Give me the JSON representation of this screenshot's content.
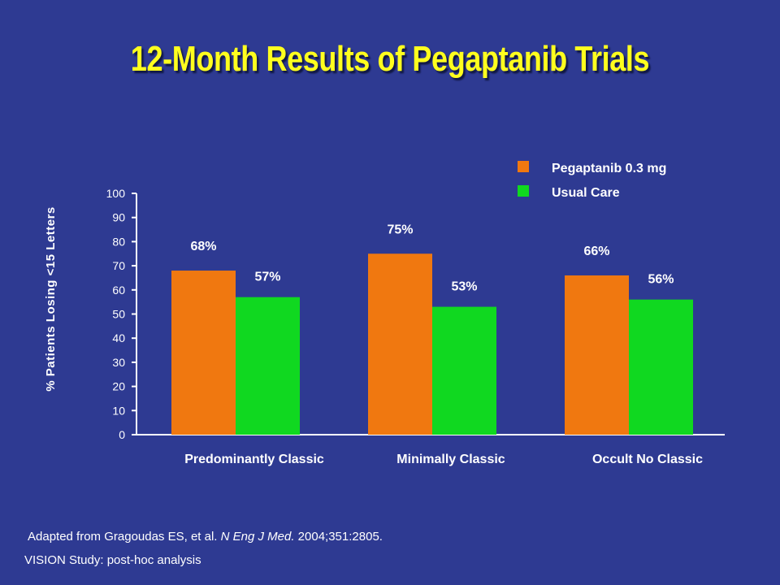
{
  "slide": {
    "title": "12-Month Results of Pegaptanib Trials",
    "citation": {
      "prefix": "Adapted from Gragoudas ES, et al. ",
      "journal": "N Eng J Med.",
      "suffix": " 2004;351:2805."
    },
    "footnote": "VISION Study: post-hoc analysis"
  },
  "chart_data": {
    "type": "bar",
    "title": "",
    "xlabel": "",
    "ylabel": "% Patients Losing <15 Letters",
    "ylim": [
      0,
      100
    ],
    "yticks": [
      0,
      10,
      20,
      30,
      40,
      50,
      60,
      70,
      80,
      90,
      100
    ],
    "grid": false,
    "legend_position": "top-right",
    "categories": [
      "Predominantly Classic",
      "Minimally Classic",
      "Occult No Classic"
    ],
    "series": [
      {
        "name": "Pegaptanib 0.3 mg",
        "color": "#f07810",
        "values": [
          68,
          75,
          66
        ],
        "labels": [
          "68%",
          "75%",
          "66%"
        ]
      },
      {
        "name": "Usual Care",
        "color": "#10d820",
        "values": [
          57,
          53,
          56
        ],
        "labels": [
          "57%",
          "53%",
          "56%"
        ]
      }
    ]
  }
}
